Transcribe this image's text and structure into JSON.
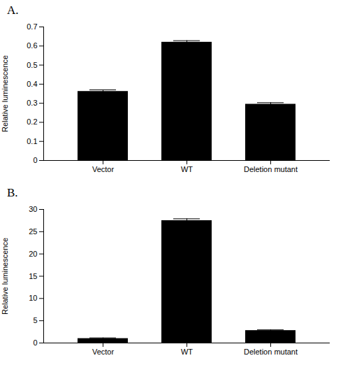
{
  "chart_data": [
    {
      "type": "bar",
      "title": "A.",
      "categories": [
        "Vector",
        "WT",
        "Deletion mutant"
      ],
      "values": [
        0.362,
        0.62,
        0.295
      ],
      "errors": [
        0.008,
        0.008,
        0.008
      ],
      "ylim": [
        0,
        0.7
      ],
      "yticks": [
        0,
        0.1,
        0.2,
        0.3,
        0.4,
        0.5,
        0.6,
        0.7
      ],
      "ylabel": "Relative luminescence"
    },
    {
      "type": "bar",
      "title": "B.",
      "categories": [
        "Vector",
        "WT",
        "Deletion mutant"
      ],
      "values": [
        1.0,
        27.5,
        2.8
      ],
      "errors": [
        0.15,
        0.4,
        0.15
      ],
      "ylim": [
        0,
        30
      ],
      "yticks": [
        0,
        5,
        10,
        15,
        20,
        25,
        30
      ],
      "ylabel": "Relative luminescence"
    }
  ]
}
